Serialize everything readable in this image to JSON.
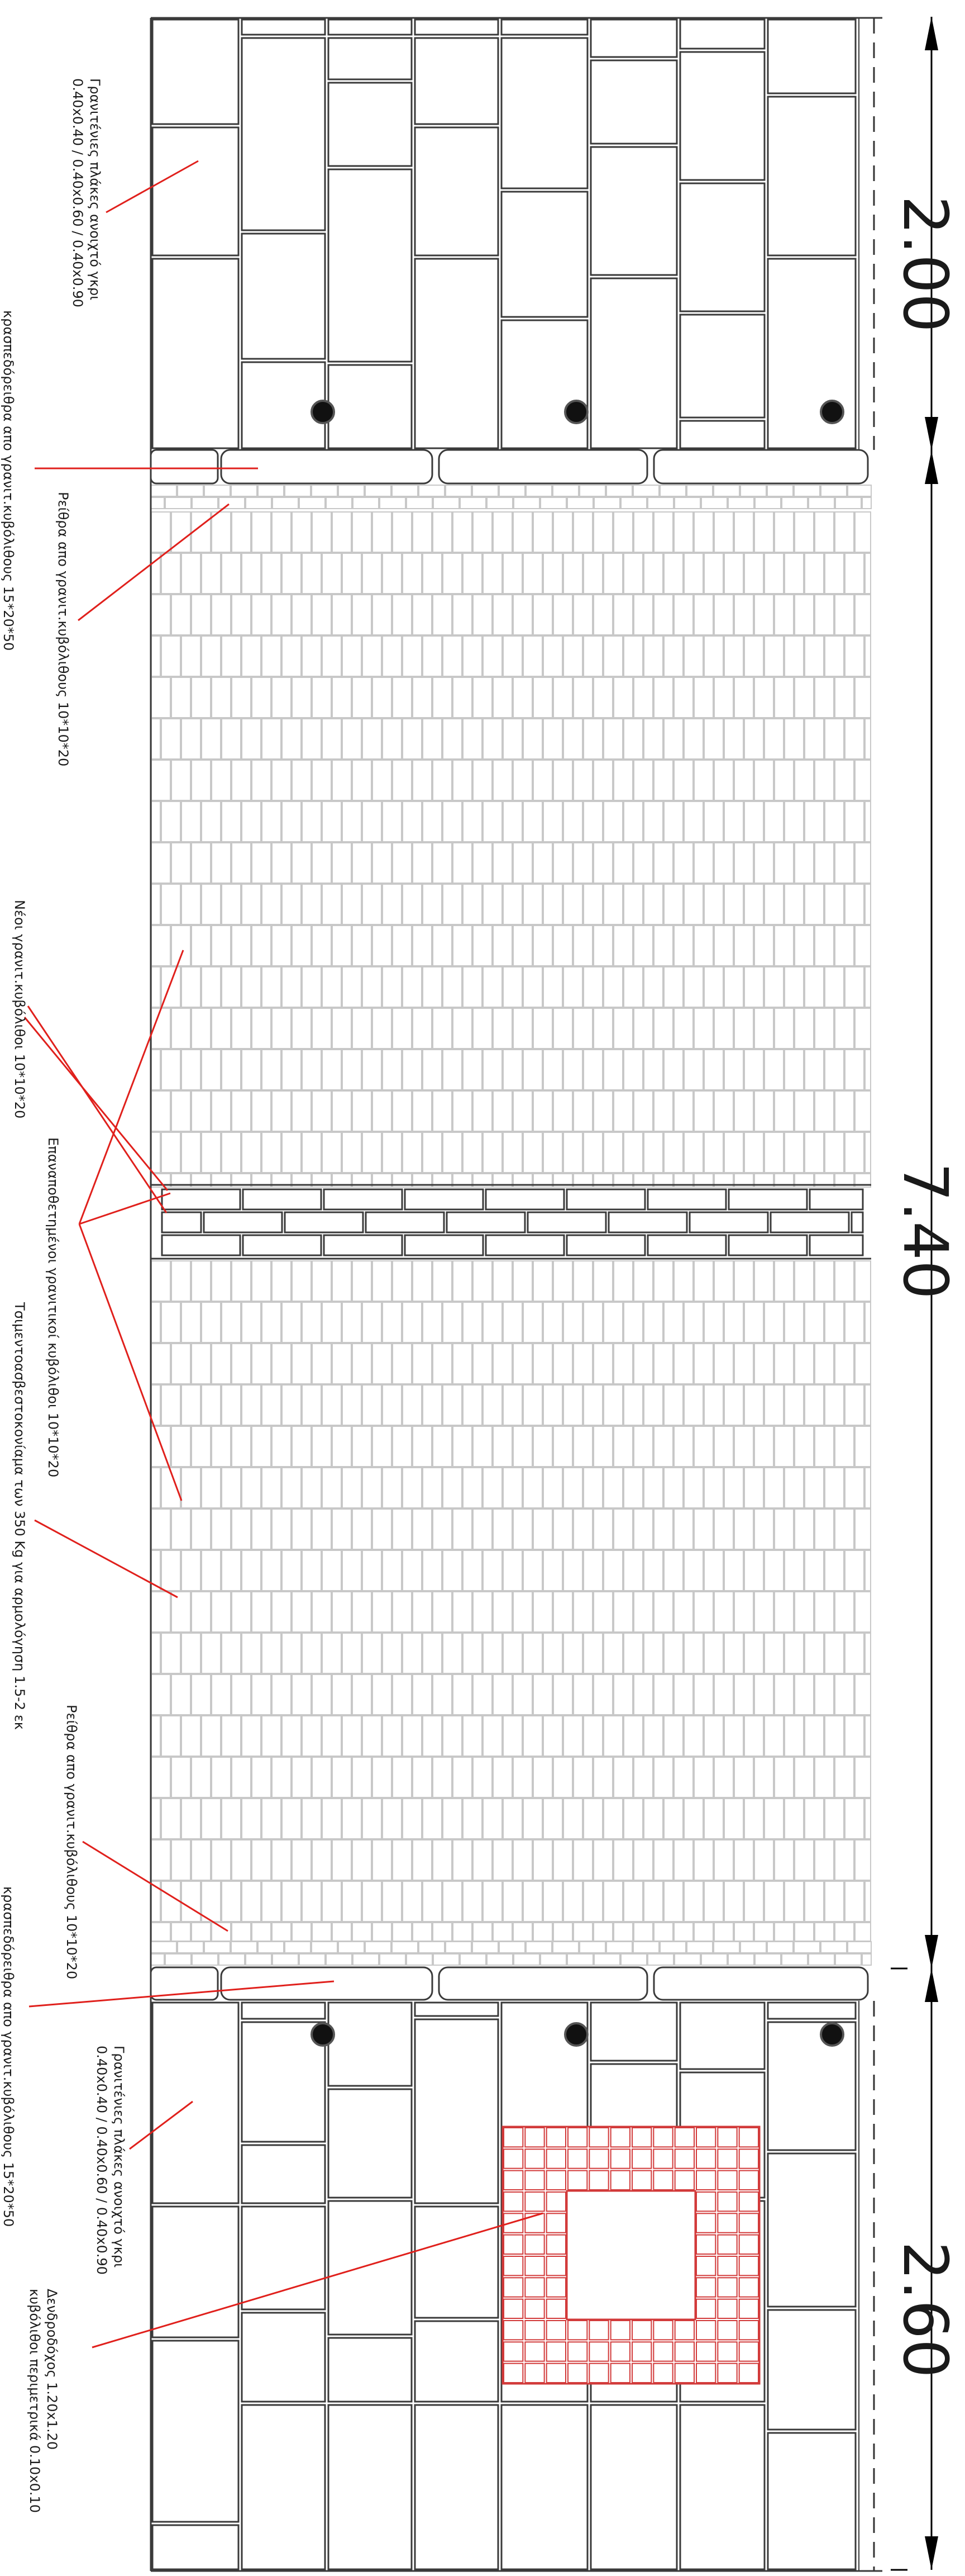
{
  "dimensions": {
    "top": "2.00",
    "middle": "7.40",
    "bottom": "2.60"
  },
  "labels": {
    "granite_top": {
      "line1": "Γρανιτένιες πλάκες ανοιχτό γκρι",
      "line2": "0.40x0.40 / 0.40x0.60 / 0.40x0.90"
    },
    "kerb_top": "κρασπεδόρειθρα απο γρανιτ.κυβόλιθους 15*20*50",
    "gutter_top": "Ρείθρα απο γρανιτ.κυβόλιθους 10*10*20",
    "new_cobbles": "Νέοι γρανιτ.κυβόλιθοι 10*10*20",
    "reused_cobbles": "Επαναποθετημένοι γρανιτικοί κυβόλιθοι 10*10*20",
    "cement_mortar": "Τσιμεντοασβεστοκονίαμα των 350 Kg για αρμολόγηση 1.5-2 εκ",
    "gutter_bottom": "Ρείθρα απο γρανιτ.κυβόλιθους 10*10*20",
    "kerb_bottom": "κρασπεδόρειθρα απο γρανιτ.κυβόλιθους 15*20*50",
    "granite_bottom": {
      "line1": "Γρανιτένιες πλάκες ανοιχτό γκρι",
      "line2": "0.40x0.40 / 0.40x0.60 / 0.40x0.90"
    },
    "tree_pit": {
      "line1": "Δενδροδόχος 1.20x1.20",
      "line2": "κυβόλιθοι περιμετρικά 0.10x0.10"
    }
  },
  "colors": {
    "outline": "#3a3a3a",
    "paver_joint": "#c8c8c8",
    "leader": "#e0201c",
    "tree_grid": "#d23a3a",
    "bollard": "#111111"
  }
}
